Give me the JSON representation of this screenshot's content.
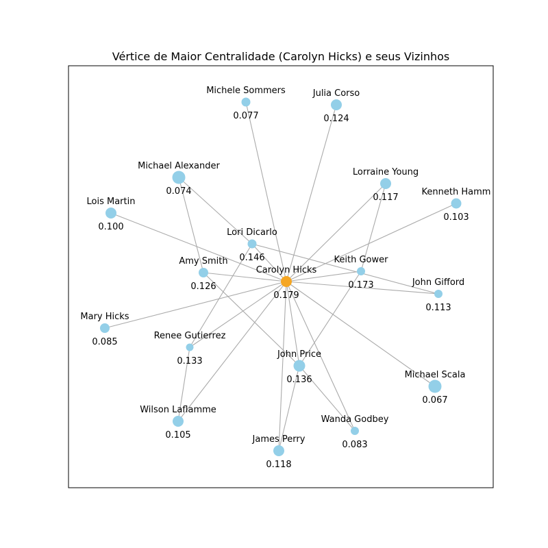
{
  "title": "Vértice de Maior Centralidade (Carolyn Hicks) e seus Vizinhos",
  "colors": {
    "center_node": "#f5a623",
    "neighbor_node": "#93cfe8",
    "edge": "#aaaaaa"
  },
  "center": "Carolyn Hicks",
  "nodes": [
    {
      "id": "carolyn",
      "name": "Carolyn Hicks",
      "value": "0.179"
    },
    {
      "id": "michele",
      "name": "Michele Sommers",
      "value": "0.077"
    },
    {
      "id": "julia",
      "name": "Julia Corso",
      "value": "0.124"
    },
    {
      "id": "michaelA",
      "name": "Michael Alexander",
      "value": "0.074"
    },
    {
      "id": "lorraine",
      "name": "Lorraine Young",
      "value": "0.117"
    },
    {
      "id": "kenneth",
      "name": "Kenneth Hamm",
      "value": "0.103"
    },
    {
      "id": "lois",
      "name": "Lois Martin",
      "value": "0.100"
    },
    {
      "id": "lori",
      "name": "Lori Dicarlo",
      "value": "0.146"
    },
    {
      "id": "amy",
      "name": "Amy Smith",
      "value": "0.126"
    },
    {
      "id": "keith",
      "name": "Keith Gower",
      "value": "0.173"
    },
    {
      "id": "john_g",
      "name": "John Gifford",
      "value": "0.113"
    },
    {
      "id": "mary",
      "name": "Mary Hicks",
      "value": "0.085"
    },
    {
      "id": "renee",
      "name": "Renee Gutierrez",
      "value": "0.133"
    },
    {
      "id": "john_p",
      "name": "John Price",
      "value": "0.136"
    },
    {
      "id": "michaelS",
      "name": "Michael Scala",
      "value": "0.067"
    },
    {
      "id": "wilson",
      "name": "Wilson Laflamme",
      "value": "0.105"
    },
    {
      "id": "wanda",
      "name": "Wanda Godbey",
      "value": "0.083"
    },
    {
      "id": "james",
      "name": "James Perry",
      "value": "0.118"
    }
  ],
  "edges": [
    [
      "carolyn",
      "michele"
    ],
    [
      "carolyn",
      "julia"
    ],
    [
      "carolyn",
      "lorraine"
    ],
    [
      "carolyn",
      "kenneth"
    ],
    [
      "carolyn",
      "lois"
    ],
    [
      "carolyn",
      "lori"
    ],
    [
      "carolyn",
      "amy"
    ],
    [
      "carolyn",
      "keith"
    ],
    [
      "carolyn",
      "john_g"
    ],
    [
      "carolyn",
      "mary"
    ],
    [
      "carolyn",
      "renee"
    ],
    [
      "carolyn",
      "john_p"
    ],
    [
      "carolyn",
      "michaelS"
    ],
    [
      "carolyn",
      "wilson"
    ],
    [
      "carolyn",
      "wanda"
    ],
    [
      "carolyn",
      "james"
    ],
    [
      "michaelA",
      "lori"
    ],
    [
      "michaelA",
      "amy"
    ],
    [
      "lori",
      "john_g"
    ],
    [
      "lori",
      "renee"
    ],
    [
      "lorraine",
      "keith"
    ],
    [
      "amy",
      "john_p"
    ],
    [
      "keith",
      "john_p"
    ],
    [
      "renee",
      "wilson"
    ],
    [
      "john_p",
      "wanda"
    ],
    [
      "john_p",
      "james"
    ]
  ]
}
